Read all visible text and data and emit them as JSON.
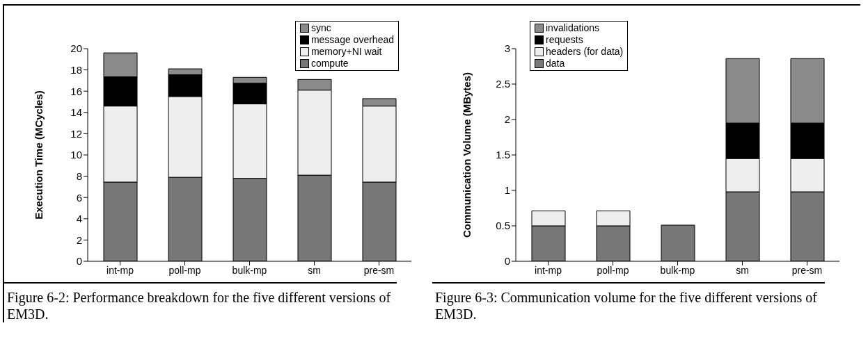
{
  "chart_data": [
    {
      "type": "bar",
      "stacked": true,
      "categories": [
        "int-mp",
        "poll-mp",
        "bulk-mp",
        "sm",
        "pre-sm"
      ],
      "ylabel": "Execution Time (MCycles)",
      "ylim": [
        0,
        20
      ],
      "yticks": [
        0,
        2,
        4,
        6,
        8,
        10,
        12,
        14,
        16,
        18,
        20
      ],
      "legend": "top right",
      "series": [
        {
          "name": "compute",
          "color": "#777777",
          "values": [
            7.45,
            7.9,
            7.8,
            8.1,
            7.45
          ]
        },
        {
          "name": "memory+NI wait",
          "color": "#eeeeee",
          "values": [
            7.15,
            7.6,
            7.0,
            8.0,
            7.15
          ]
        },
        {
          "name": "message overhead",
          "color": "#000000",
          "values": [
            2.75,
            2.05,
            1.95,
            0,
            0
          ]
        },
        {
          "name": "sync",
          "color": "#8a8a8a",
          "values": [
            2.25,
            0.55,
            0.55,
            1.0,
            0.7
          ]
        }
      ],
      "annotations": [
        "Figure 6-2: Performance breakdown for the five different versions of EM3D."
      ]
    },
    {
      "type": "bar",
      "stacked": true,
      "categories": [
        "int-mp",
        "poll-mp",
        "bulk-mp",
        "sm",
        "pre-sm"
      ],
      "ylabel": "Communication Volume (MBytes)",
      "ylim": [
        0,
        3
      ],
      "yticks": [
        0,
        0.5,
        1,
        1.5,
        2,
        2.5,
        3
      ],
      "legend": "top left",
      "series": [
        {
          "name": "data",
          "color": "#777777",
          "values": [
            0.5,
            0.5,
            0.51,
            0.98,
            0.98
          ]
        },
        {
          "name": "headers (for data)",
          "color": "#eeeeee",
          "values": [
            0.21,
            0.21,
            0,
            0.47,
            0.47
          ]
        },
        {
          "name": "requests",
          "color": "#000000",
          "values": [
            0,
            0,
            0,
            0.5,
            0.5
          ]
        },
        {
          "name": "invalidations",
          "color": "#8a8a8a",
          "values": [
            0,
            0,
            0,
            0.91,
            0.91
          ]
        }
      ],
      "annotations": [
        "Figure 6-3: Communication volume for the five different versions of EM3D."
      ]
    }
  ]
}
